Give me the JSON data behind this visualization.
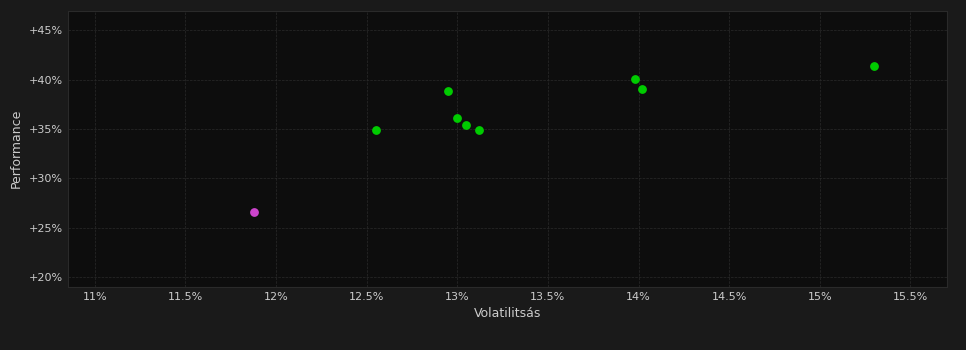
{
  "background_color": "#1a1a1a",
  "plot_bg_color": "#0d0d0d",
  "grid_color": "#2a2a2a",
  "text_color": "#cccccc",
  "xlabel": "Volatilitsás",
  "ylabel": "Performance",
  "xlim": [
    0.1085,
    0.157
  ],
  "ylim": [
    0.19,
    0.47
  ],
  "xticks": [
    0.11,
    0.115,
    0.12,
    0.125,
    0.13,
    0.135,
    0.14,
    0.145,
    0.15,
    0.155
  ],
  "xtick_labels": [
    "11%",
    "11.5%",
    "12%",
    "12.5%",
    "13%",
    "13.5%",
    "14%",
    "14.5%",
    "15%",
    "15.5%"
  ],
  "yticks": [
    0.2,
    0.25,
    0.3,
    0.35,
    0.4,
    0.45
  ],
  "ytick_labels": [
    "+20%",
    "+25%",
    "+30%",
    "+35%",
    "+40%",
    "+45%"
  ],
  "green_points": [
    [
      0.1255,
      0.349
    ],
    [
      0.1295,
      0.388
    ],
    [
      0.13,
      0.361
    ],
    [
      0.1305,
      0.354
    ],
    [
      0.1312,
      0.349
    ],
    [
      0.1398,
      0.401
    ],
    [
      0.1402,
      0.391
    ],
    [
      0.153,
      0.414
    ]
  ],
  "magenta_points": [
    [
      0.1188,
      0.266
    ]
  ],
  "green_color": "#00cc00",
  "magenta_color": "#cc44cc",
  "marker_size": 28
}
